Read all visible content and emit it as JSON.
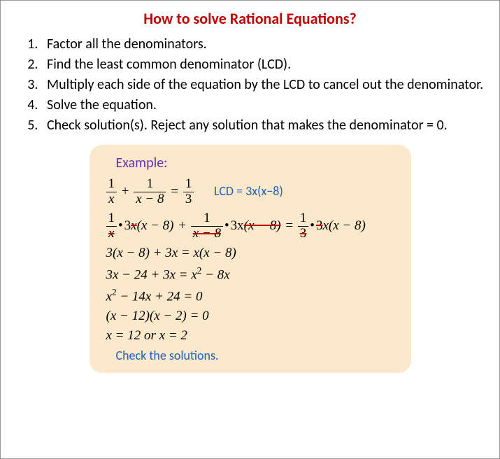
{
  "title": "How to solve Rational Equations?",
  "steps": [
    "Factor all the denominators.",
    "Find the least common denominator (LCD).",
    "Multiply each side of the equation by the LCD to cancel out the denominator.",
    "Solve the equation.",
    "Check solution(s). Reject any solution that makes the denominator = 0."
  ],
  "example": {
    "label": "Example:",
    "lcd_label": "LCD = 3x(x−8)",
    "line1": {
      "f1_num": "1",
      "f1_den": "x",
      "plus": "+",
      "f2_num": "1",
      "f2_den": "x − 8",
      "eq": "=",
      "f3_num": "1",
      "f3_den": "3"
    },
    "line2": {
      "f1_num": "1",
      "f1_den": "x",
      "dot": "•",
      "t1a": "3",
      "t1b": "x",
      "t1c": "(x − 8)",
      "plus": "+",
      "f2_num": "1",
      "f2_den": "x − 8",
      "t2a": "3x",
      "t2b": "(x − 8)",
      "eq": "=",
      "f3_num": "1",
      "f3_den": "3",
      "t3a": "3",
      "t3b": "x(x − 8)"
    },
    "line3": "3(x − 8) + 3x = x(x − 8)",
    "line4_a": "3x − 24 + 3x = x",
    "line4_b": " − 8x",
    "line5_a": "x",
    "line5_b": " − 14x + 24 = 0",
    "line6": "(x − 12)(x − 2) = 0",
    "line7": "x = 12  or x = 2",
    "check": "Check the solutions."
  },
  "colors": {
    "title": "#c00000",
    "example_bg": "#fce9cc",
    "accent": "#1f5fbf",
    "strike": "#c00000",
    "purple": "#6b2fb3"
  }
}
